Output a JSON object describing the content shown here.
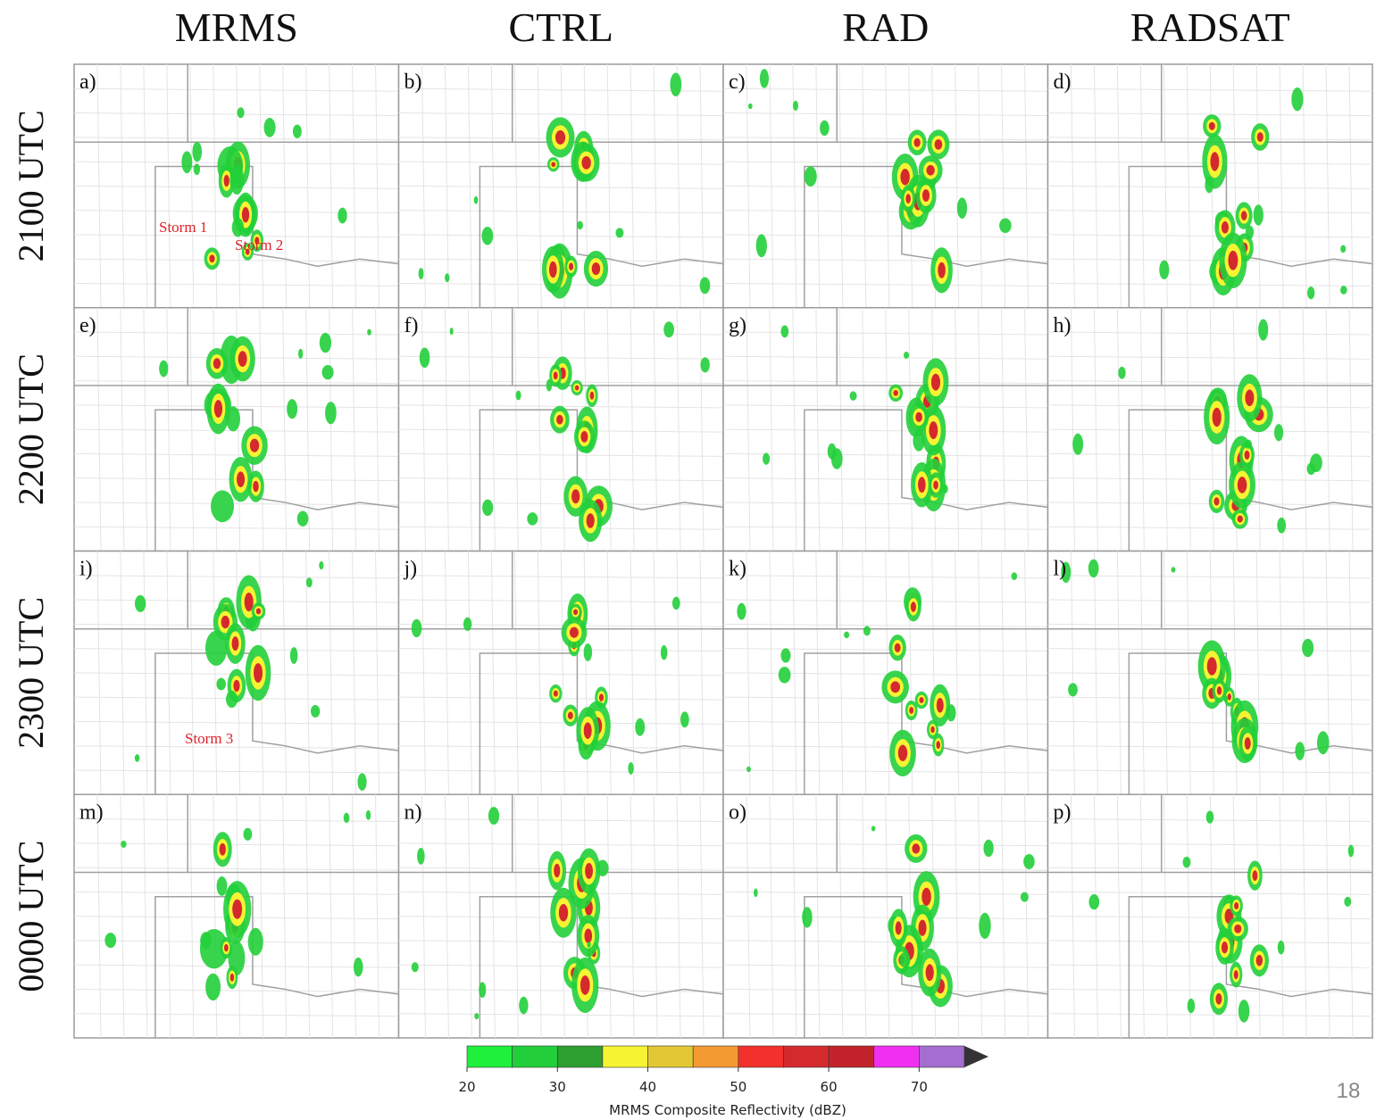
{
  "columns": [
    "MRMS",
    "CTRL",
    "RAD",
    "RADSAT"
  ],
  "rows": [
    "2100 UTC",
    "2200 UTC",
    "2300 UTC",
    "0000 UTC"
  ],
  "panels": [
    "a)",
    "b)",
    "c)",
    "d)",
    "e)",
    "f)",
    "g)",
    "h)",
    "i)",
    "j)",
    "k)",
    "l)",
    "m)",
    "n)",
    "o)",
    "p)"
  ],
  "annotations": [
    "Storm 1",
    "Storm 2",
    "Storm 3"
  ],
  "colorbar": {
    "range": [
      20,
      75
    ],
    "ticks": [
      20,
      30,
      40,
      50,
      60,
      70
    ],
    "colors": [
      "#1ef03c",
      "#22cf3a",
      "#2e9f31",
      "#f6f432",
      "#e2c835",
      "#f39a33",
      "#f2302c",
      "#d42a2e",
      "#c2232a",
      "#f02ff0",
      "#a46dd0"
    ],
    "label": "MRMS Composite Reflectivity (dBZ)"
  },
  "page_number": "18"
}
